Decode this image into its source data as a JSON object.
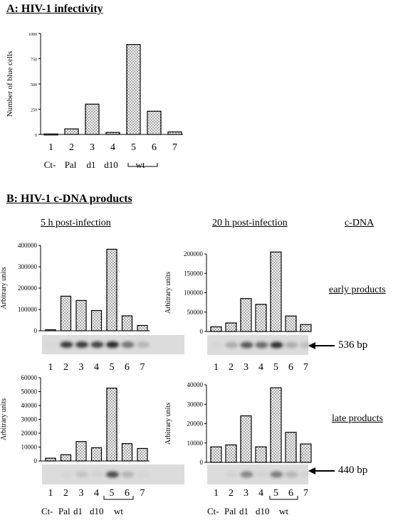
{
  "section_a": {
    "title": "A: HIV-1 infectivity"
  },
  "section_b": {
    "title": "B: HIV-1 c-DNA products",
    "col_5h": "5 h post-infection",
    "col_20h": "20 h post-infection",
    "cdna_label": "c-DNA",
    "early_label": "early products",
    "late_label": "late products",
    "band_early": "536 bp",
    "band_late": "440 bp"
  },
  "colors": {
    "bar_fill": "#f0f0f0",
    "dot": "#444444",
    "band": "#1a1a1a",
    "gel_bg": "#dcdcdc"
  },
  "chart_data": [
    {
      "id": "infectivity",
      "type": "bar",
      "ylabel": "Number of blue cells",
      "yticks": [
        0,
        250,
        500,
        750,
        1000
      ],
      "ylim": [
        0,
        1000
      ],
      "categories": [
        "1",
        "2",
        "3",
        "4",
        "5",
        "6",
        "7"
      ],
      "category_labels": [
        "Ct-",
        "Pal",
        "d1",
        "d10",
        "wt"
      ],
      "group_bracket": "wt",
      "values": [
        5,
        55,
        300,
        20,
        890,
        230,
        25
      ]
    },
    {
      "id": "early-5h",
      "type": "bar",
      "ylabel": "Arbitrary units",
      "yticks": [
        0,
        100000,
        200000,
        300000,
        400000
      ],
      "ylim": [
        0,
        400000
      ],
      "categories": [
        "1",
        "2",
        "3",
        "4",
        "5",
        "6",
        "7"
      ],
      "values": [
        5000,
        162000,
        142000,
        95000,
        382000,
        70000,
        25000
      ],
      "gel_intensity": [
        0.02,
        0.85,
        0.85,
        0.8,
        0.95,
        0.55,
        0.2
      ]
    },
    {
      "id": "early-20h",
      "type": "bar",
      "ylabel": "Arbitrary units",
      "yticks": [
        0,
        50000,
        100000,
        150000,
        200000
      ],
      "ylim": [
        0,
        200000
      ],
      "categories": [
        "1",
        "2",
        "3",
        "4",
        "5",
        "6",
        "7"
      ],
      "values": [
        12000,
        22000,
        85000,
        70000,
        205000,
        40000,
        18000
      ],
      "gel_intensity": [
        0.03,
        0.25,
        0.7,
        0.6,
        0.9,
        0.25,
        0.15
      ]
    },
    {
      "id": "late-5h",
      "type": "bar",
      "ylabel": "Arbitrary units",
      "yticks": [
        0,
        10000,
        20000,
        30000,
        40000,
        50000,
        60000
      ],
      "ylim": [
        0,
        60000
      ],
      "categories": [
        "1",
        "2",
        "3",
        "4",
        "5",
        "6",
        "7"
      ],
      "category_labels": [
        "Ct-",
        "Pal",
        "d1",
        "d10",
        "wt"
      ],
      "group_bracket": "wt",
      "values": [
        2000,
        4500,
        14000,
        9500,
        52500,
        12500,
        9000
      ],
      "gel_intensity": [
        0.0,
        0.03,
        0.12,
        0.05,
        0.75,
        0.2,
        0.03
      ]
    },
    {
      "id": "late-20h",
      "type": "bar",
      "ylabel": "Arbitrary units",
      "yticks": [
        0,
        10000,
        20000,
        30000,
        40000
      ],
      "ylim": [
        0,
        40000
      ],
      "categories": [
        "1",
        "2",
        "3",
        "4",
        "5",
        "6",
        "7"
      ],
      "category_labels": [
        "Ct-",
        "Pal",
        "d1",
        "d10",
        "wt"
      ],
      "group_bracket": "wt",
      "values": [
        8000,
        9000,
        24000,
        8000,
        38500,
        15500,
        9500
      ],
      "gel_intensity": [
        0.0,
        0.05,
        0.45,
        0.05,
        0.5,
        0.2,
        0.05
      ]
    }
  ]
}
